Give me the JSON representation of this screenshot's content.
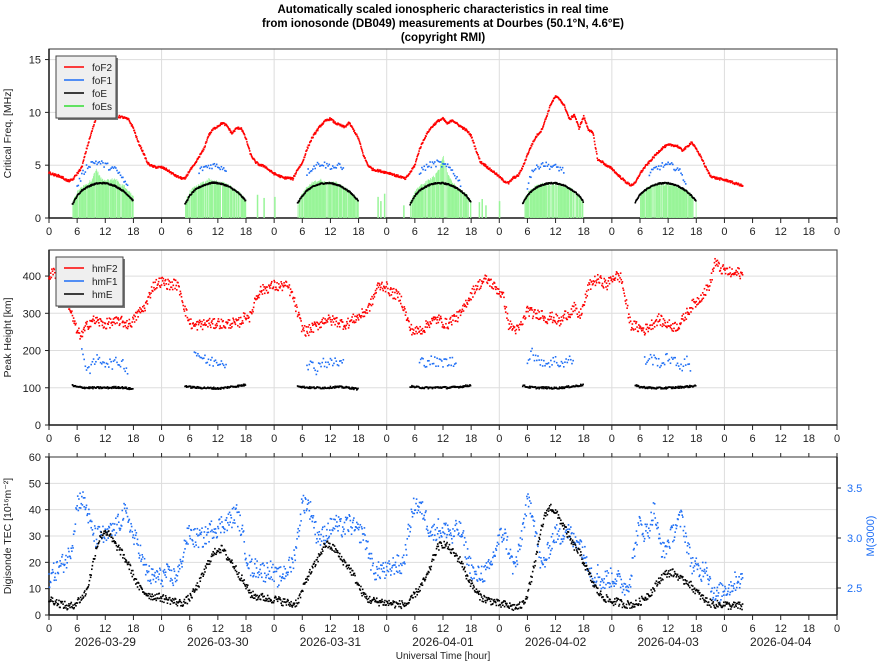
{
  "title_lines": [
    "Automatically scaled ionospheric characteristics in real time",
    "from ionosonde (DB049) measurements at Dourbes (50.1°N, 4.6°E)",
    "(copyright RMI)"
  ],
  "colors": {
    "foF2": "#ff0000",
    "foF1": "#1f6ff5",
    "foE": "#000000",
    "foEs": "#98f598",
    "foEs_legend": "#33dd33",
    "M3000": "#1f6ff5",
    "TEC": "#000000",
    "grid": "#dddddd"
  },
  "chart_data": [
    {
      "type": "scatter",
      "panel": "frequencies",
      "ylabel": "Critical Freq. [MHz]",
      "ylim": [
        0,
        16
      ],
      "yticks": [
        0,
        5,
        10,
        15
      ],
      "xlim_hours": [
        0,
        168
      ],
      "xtick_step_hours": 6,
      "grid": true,
      "legend_placement": "top-left",
      "legend": [
        "foF2",
        "foF1",
        "foE",
        "foEs"
      ],
      "foF2_hourly": [
        4.3,
        4.1,
        4.0,
        3.8,
        3.5,
        3.6,
        4.2,
        4.8,
        6.5,
        8.0,
        9.4,
        9.7,
        9.8,
        9.5,
        9.5,
        9.6,
        9.5,
        9.3,
        8.5,
        7.2,
        6.3,
        5.2,
        4.9,
        4.8,
        4.8,
        4.6,
        4.3,
        4.0,
        3.8,
        3.7,
        4.5,
        5.0,
        5.8,
        6.5,
        7.8,
        8.4,
        8.7,
        9.0,
        8.7,
        8.0,
        8.5,
        8.5,
        7.5,
        6.0,
        5.3,
        5.0,
        4.9,
        4.5,
        4.2,
        4.0,
        3.8,
        3.8,
        3.7,
        4.6,
        5.2,
        6.5,
        7.5,
        8.2,
        8.8,
        9.2,
        9.4,
        9.0,
        8.8,
        8.6,
        9.0,
        8.3,
        7.5,
        6.0,
        5.0,
        4.6,
        4.5,
        4.4,
        4.3,
        4.2,
        4.0,
        3.9,
        3.7,
        4.3,
        5.0,
        6.5,
        7.5,
        8.3,
        8.8,
        9.2,
        9.4,
        8.9,
        9.3,
        8.9,
        8.6,
        8.3,
        7.8,
        6.5,
        5.3,
        5.0,
        4.6,
        4.3,
        3.9,
        3.5,
        3.3,
        3.8,
        4.0,
        4.8,
        6.0,
        7.0,
        7.8,
        8.3,
        9.5,
        10.8,
        11.5,
        11.2,
        10.5,
        9.3,
        9.8,
        8.5,
        9.6,
        8.4,
        8.0,
        5.5,
        5.3,
        4.9,
        4.7,
        4.2,
        3.8,
        3.4,
        3.1,
        3.3,
        4.2,
        4.8,
        5.3,
        5.8,
        6.3,
        6.7,
        6.9,
        6.9,
        6.8,
        6.4,
        6.7,
        7.2,
        6.5,
        5.8,
        4.8,
        4.0,
        3.8,
        3.7,
        3.6,
        3.5,
        3.3,
        3.2,
        3.0
      ],
      "foF1_segments": [
        {
          "day": 0,
          "start": 6,
          "values": [
            3.0,
            4.0,
            4.8,
            5.2,
            5.3,
            5.2,
            5.0,
            4.8,
            4.6,
            4.2,
            3.5,
            2.8
          ]
        },
        {
          "day": 1,
          "start": 8,
          "values": [
            4.4,
            4.8,
            4.9,
            5.0,
            4.9,
            4.8,
            4.5
          ]
        },
        {
          "day": 2,
          "start": 7,
          "values": [
            4.3,
            4.7,
            5.0,
            5.2,
            5.0,
            4.9,
            4.8,
            4.9,
            4.5
          ]
        },
        {
          "day": 3,
          "start": 7,
          "values": [
            4.4,
            4.7,
            5.0,
            5.1,
            5.2,
            5.0,
            4.8,
            4.5,
            3.8,
            3.0
          ]
        },
        {
          "day": 4,
          "start": 6,
          "values": [
            3.0,
            4.5,
            4.7,
            5.2,
            5.0,
            4.9,
            4.8,
            4.7,
            4.4
          ]
        },
        {
          "day": 5,
          "start": 8,
          "values": [
            4.0,
            4.6,
            4.8,
            5.0,
            5.0,
            4.9,
            4.7,
            4.0,
            3.2
          ]
        }
      ],
      "foE_segments": [
        {
          "day": 0,
          "start": 5,
          "values": [
            1.3,
            2.1,
            2.6,
            2.9,
            3.1,
            3.25,
            3.3,
            3.3,
            3.2,
            3.05,
            2.8,
            2.5,
            2.1,
            1.6
          ]
        },
        {
          "day": 1,
          "start": 5,
          "values": [
            1.3,
            2.1,
            2.6,
            2.9,
            3.1,
            3.25,
            3.35,
            3.3,
            3.2,
            3.05,
            2.8,
            2.5,
            2.1,
            1.6
          ]
        },
        {
          "day": 2,
          "start": 5,
          "values": [
            1.4,
            2.1,
            2.6,
            2.9,
            3.1,
            3.25,
            3.3,
            3.3,
            3.2,
            3.05,
            2.8,
            2.5,
            2.1,
            1.6
          ]
        },
        {
          "day": 3,
          "start": 5,
          "values": [
            1.3,
            2.1,
            2.6,
            2.9,
            3.1,
            3.25,
            3.3,
            3.3,
            3.2,
            3.05,
            2.8,
            2.5,
            2.1,
            1.5
          ]
        },
        {
          "day": 4,
          "start": 5,
          "values": [
            1.4,
            2.1,
            2.6,
            2.9,
            3.1,
            3.25,
            3.3,
            3.3,
            3.2,
            3.05,
            2.8,
            2.5,
            2.1,
            1.5
          ]
        },
        {
          "day": 5,
          "start": 5,
          "values": [
            1.5,
            2.2,
            2.6,
            2.9,
            3.1,
            3.25,
            3.3,
            3.3,
            3.2,
            3.05,
            2.8,
            2.5,
            2.1,
            1.6
          ]
        }
      ],
      "foEs_segments": [
        {
          "day": 0,
          "start": 5,
          "values": [
            1.5,
            2.5,
            2.9,
            3.2,
            3.6,
            4.6,
            3.7,
            3.6,
            3.6,
            3.7,
            3.3,
            3.0,
            2.5,
            2.0
          ]
        },
        {
          "day": 1,
          "start": 5,
          "values": [
            1.6,
            2.5,
            2.9,
            3.2,
            3.4,
            3.7,
            3.5,
            3.4,
            3.3,
            3.1,
            2.9,
            2.6,
            2.2,
            1.7
          ]
        },
        {
          "day": 2,
          "start": 5,
          "values": [
            1.4,
            2.4,
            2.9,
            3.3,
            3.5,
            3.6,
            3.3,
            3.5,
            3.4,
            3.1,
            2.8,
            2.5,
            2.1,
            1.6
          ]
        },
        {
          "day": 3,
          "start": 5,
          "values": [
            1.5,
            2.5,
            3.0,
            3.3,
            3.6,
            3.9,
            4.5,
            5.8,
            4.2,
            3.3,
            2.9,
            2.5,
            2.2,
            1.7
          ]
        },
        {
          "day": 4,
          "start": 5,
          "values": [
            1.5,
            2.4,
            2.8,
            3.1,
            3.2,
            3.2,
            3.2,
            3.2,
            3.1,
            3.0,
            2.8,
            2.5,
            2.1,
            1.6
          ]
        },
        {
          "day": 5,
          "start": 6,
          "values": [
            2.2,
            2.7,
            3.0,
            3.1,
            3.2,
            3.2,
            3.2,
            3.1,
            3.0,
            2.8,
            2.5,
            2.1,
            1.6
          ]
        }
      ],
      "foEs_isolated": [
        [
          44.3,
          2.2
        ],
        [
          45.7,
          1.9
        ],
        [
          48.0,
          2.0
        ],
        [
          70.0,
          2.0
        ],
        [
          70.6,
          1.6
        ],
        [
          71.4,
          2.3
        ],
        [
          75.5,
          1.2
        ],
        [
          91.6,
          1.5
        ],
        [
          92.2,
          1.8
        ],
        [
          93.0,
          1.2
        ],
        [
          95.9,
          1.6
        ]
      ]
    },
    {
      "type": "scatter",
      "panel": "heights",
      "ylabel": "Peak Height [km]",
      "ylim": [
        0,
        470
      ],
      "yticks": [
        0,
        100,
        200,
        300,
        400
      ],
      "xlim_hours": [
        0,
        168
      ],
      "grid": true,
      "legend_placement": "top-left",
      "legend": [
        "hmF2",
        "hmF1",
        "hmE"
      ],
      "hmF2_hourly": [
        400,
        410,
        400,
        380,
        330,
        290,
        250,
        240,
        265,
        280,
        280,
        275,
        270,
        275,
        275,
        280,
        275,
        270,
        280,
        300,
        310,
        330,
        370,
        380,
        385,
        380,
        375,
        380,
        360,
        310,
        275,
        265,
        270,
        270,
        275,
        270,
        275,
        270,
        270,
        275,
        270,
        280,
        295,
        290,
        340,
        360,
        365,
        370,
        375,
        370,
        375,
        370,
        345,
        300,
        260,
        250,
        260,
        265,
        275,
        285,
        280,
        280,
        275,
        270,
        275,
        285,
        290,
        300,
        310,
        335,
        370,
        375,
        370,
        355,
        350,
        340,
        300,
        260,
        250,
        255,
        260,
        275,
        280,
        285,
        275,
        270,
        285,
        290,
        300,
        330,
        350,
        370,
        380,
        390,
        385,
        370,
        360,
        340,
        270,
        260,
        255,
        275,
        310,
        300,
        295,
        300,
        285,
        290,
        285,
        275,
        295,
        300,
        315,
        290,
        320,
        370,
        385,
        390,
        385,
        375,
        395,
        400,
        395,
        330,
        270,
        265,
        260,
        255,
        265,
        275,
        285,
        275,
        270,
        265,
        265,
        280,
        300,
        320,
        330,
        345,
        360,
        380,
        440,
        420,
        415,
        410,
        405,
        410,
        400
      ],
      "hmF1_segments": [
        {
          "day": 0,
          "start": 7,
          "values": [
            190,
            160,
            150,
            175,
            175,
            170,
            165,
            165,
            170,
            165,
            140
          ]
        },
        {
          "day": 1,
          "start": 7,
          "values": [
            195,
            190,
            175,
            170,
            170,
            172,
            170,
            168
          ]
        },
        {
          "day": 2,
          "start": 7,
          "values": [
            165,
            160,
            150,
            170,
            168,
            165,
            170,
            165,
            170
          ]
        },
        {
          "day": 3,
          "start": 7,
          "values": [
            170,
            168,
            175,
            170,
            165,
            170,
            168,
            170,
            160
          ]
        },
        {
          "day": 4,
          "start": 6,
          "values": [
            180,
            200,
            170,
            175,
            165,
            170,
            172,
            165,
            170,
            175,
            170
          ]
        },
        {
          "day": 5,
          "start": 7,
          "values": [
            170,
            180,
            175,
            170,
            165,
            185,
            170,
            165,
            160,
            170,
            150
          ]
        }
      ],
      "hmE_segments": [
        {
          "day": 0,
          "start": 5,
          "values": [
            106,
            102,
            101,
            100,
            100,
            100,
            100,
            100,
            100,
            101,
            101,
            100,
            98,
            96
          ]
        },
        {
          "day": 1,
          "start": 5,
          "values": [
            105,
            102,
            101,
            100,
            100,
            99,
            99,
            98,
            99,
            101,
            103,
            104,
            106,
            108
          ]
        },
        {
          "day": 2,
          "start": 5,
          "values": [
            106,
            102,
            101,
            100,
            100,
            100,
            100,
            101,
            102,
            102,
            101,
            100,
            98,
            96
          ]
        },
        {
          "day": 3,
          "start": 5,
          "values": [
            104,
            102,
            101,
            100,
            100,
            100,
            101,
            101,
            100,
            101,
            102,
            103,
            105,
            107
          ]
        },
        {
          "day": 4,
          "start": 5,
          "values": [
            106,
            102,
            101,
            100,
            100,
            100,
            99,
            99,
            100,
            101,
            103,
            104,
            106,
            108
          ]
        },
        {
          "day": 5,
          "start": 5,
          "values": [
            106,
            102,
            101,
            100,
            99,
            99,
            99,
            100,
            100,
            101,
            102,
            103,
            104,
            106
          ]
        }
      ]
    },
    {
      "type": "scatter",
      "panel": "tec",
      "ylabel": "Digisonde TEC [10¹⁶m⁻²]",
      "ylim": [
        0,
        60
      ],
      "yticks": [
        0,
        10,
        20,
        30,
        40,
        50,
        60
      ],
      "y2label": "M(3000)",
      "y2lim": [
        2.23,
        3.81
      ],
      "y2ticks": [
        "2.5",
        "3.0",
        "3.5"
      ],
      "xlabel": "Universal Time [hour]",
      "dates": [
        "2026-03-29",
        "2026-03-30",
        "2026-03-31",
        "2026-04-01",
        "2026-04-02",
        "2026-04-03",
        "2026-04-04"
      ],
      "TEC_hourly": [
        6,
        5.5,
        4.5,
        4,
        3,
        3.5,
        5,
        6.5,
        9,
        16,
        25,
        30,
        32,
        30,
        27,
        25,
        22,
        19,
        15,
        11,
        9,
        8,
        7,
        7,
        6.5,
        6,
        5.5,
        5,
        4.5,
        5,
        6.5,
        9,
        12,
        16,
        20,
        23,
        25,
        25,
        22,
        20,
        17,
        14,
        11,
        8,
        7,
        7,
        6.5,
        6,
        6,
        5.5,
        5,
        4.5,
        4,
        5,
        9,
        14,
        17,
        20,
        24,
        27,
        26,
        25,
        22,
        20,
        18,
        15,
        11,
        8,
        6,
        5.5,
        5,
        5,
        4.5,
        4.5,
        4,
        4,
        4,
        5,
        8,
        10,
        13,
        16,
        22,
        26,
        27,
        26,
        24,
        22,
        20,
        15,
        12,
        9,
        7,
        6,
        5.5,
        5,
        4,
        4,
        3.5,
        3,
        3,
        4,
        8,
        15,
        23,
        33,
        39,
        41,
        39,
        36,
        33,
        29,
        26,
        24,
        20,
        16,
        12,
        9,
        7,
        6,
        5,
        5,
        4.5,
        4,
        4,
        4,
        5,
        6.5,
        8,
        10,
        13,
        15,
        16,
        16,
        15,
        13,
        13,
        11,
        9,
        7,
        5.5,
        4.5,
        4,
        4,
        4,
        3.5,
        3.5,
        3.5,
        3
      ],
      "M3000_hourly": [
        2.6,
        2.65,
        2.7,
        2.75,
        2.8,
        2.95,
        3.35,
        3.4,
        3.3,
        3.1,
        3.0,
        3.05,
        3.0,
        3.05,
        3.1,
        3.15,
        3.25,
        3.2,
        3.0,
        2.95,
        2.75,
        2.65,
        2.6,
        2.62,
        2.6,
        2.65,
        2.6,
        2.62,
        2.7,
        2.95,
        3.05,
        3.0,
        3.0,
        3.0,
        3.05,
        3.1,
        3.1,
        3.15,
        3.15,
        3.2,
        3.25,
        3.1,
        2.85,
        2.7,
        2.7,
        2.7,
        2.65,
        2.7,
        2.62,
        2.6,
        2.65,
        2.7,
        2.75,
        3.0,
        3.35,
        3.35,
        3.25,
        3.05,
        3.0,
        3.05,
        3.1,
        3.15,
        3.1,
        3.1,
        3.15,
        3.1,
        3.05,
        3.05,
        2.9,
        2.7,
        2.65,
        2.7,
        2.65,
        2.7,
        2.75,
        2.7,
        2.85,
        3.15,
        3.35,
        3.3,
        3.25,
        3.1,
        3.05,
        3.1,
        3.05,
        3.1,
        3.0,
        3.1,
        3.05,
        2.85,
        2.7,
        2.6,
        2.65,
        2.65,
        2.7,
        2.85,
        3.0,
        3.05,
        2.9,
        2.7,
        2.8,
        3.1,
        3.35,
        3.3,
        3.0,
        2.7,
        2.8,
        2.95,
        3.05,
        3.0,
        3.1,
        3.05,
        2.95,
        3.0,
        2.85,
        2.75,
        2.6,
        2.65,
        2.55,
        2.6,
        2.6,
        2.6,
        2.55,
        2.5,
        2.6,
        2.95,
        3.15,
        3.05,
        3.1,
        3.3,
        3.0,
        2.85,
        2.95,
        3.05,
        3.15,
        3.2,
        2.95,
        2.75,
        2.7,
        2.65,
        2.75,
        2.55,
        2.4,
        2.45,
        2.5,
        2.5,
        2.55,
        2.6,
        2.55
      ]
    }
  ]
}
